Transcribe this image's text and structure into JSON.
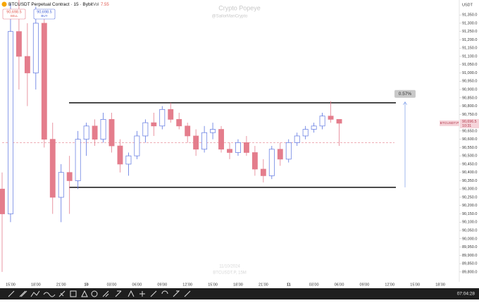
{
  "header": {
    "symbol": "BTCUSDT Perpetual Contract · 15 · Bybit",
    "vol_label": "Vol",
    "vol_value": "7.55",
    "sell_price": "90,698.5",
    "sell_label": "SELL",
    "buy_price": "90,698.5",
    "buy_label": "BUY"
  },
  "watermark": {
    "title": "Crypto Popeye",
    "handle": "@SailorManCrypto",
    "date": "11/10/2024",
    "symbol": "BTCUSDT.P, 15M"
  },
  "chart_data": {
    "type": "candlestick",
    "currency": "USDT",
    "x": [
      14,
      15,
      16,
      17,
      18,
      19,
      20,
      21,
      22,
      23,
      24,
      25,
      26,
      27,
      28,
      29,
      30,
      31,
      32,
      33,
      34,
      35,
      36,
      37,
      38,
      39,
      40,
      41,
      42,
      43,
      44,
      45,
      46,
      47,
      48,
      49,
      50,
      51,
      52,
      53,
      54
    ],
    "open": [
      90300,
      90150,
      91250,
      91100,
      91000,
      91300,
      90600,
      90250,
      90400,
      90350,
      90600,
      90680,
      90600,
      90720,
      90560,
      90450,
      90500,
      90620,
      90700,
      90680,
      90780,
      90720,
      90680,
      90620,
      90540,
      90640,
      90660,
      90540,
      90520,
      90580,
      90520,
      90420,
      90380,
      90540,
      90480,
      90580,
      90620,
      90660,
      90680,
      90740,
      90720
    ],
    "high": [
      90400,
      91420,
      91440,
      91300,
      91400,
      91350,
      90700,
      90450,
      90500,
      90650,
      90700,
      90720,
      90760,
      90760,
      90600,
      90520,
      90650,
      90720,
      90760,
      90800,
      90820,
      90760,
      90700,
      90660,
      90680,
      90700,
      90680,
      90580,
      90600,
      90620,
      90560,
      90480,
      90560,
      90580,
      90600,
      90640,
      90680,
      90700,
      90760,
      90830,
      90720
    ],
    "low": [
      89800,
      90100,
      90900,
      90800,
      90900,
      90550,
      90150,
      90100,
      90150,
      90300,
      90500,
      90560,
      90580,
      90520,
      90400,
      90380,
      90480,
      90580,
      90620,
      90660,
      90700,
      90660,
      90580,
      90500,
      90520,
      90600,
      90520,
      90480,
      90500,
      90500,
      90380,
      90340,
      90360,
      90440,
      90460,
      90560,
      90600,
      90640,
      90660,
      90700,
      90560
    ],
    "close": [
      90150,
      91250,
      91100,
      91000,
      91300,
      90600,
      90250,
      90400,
      90350,
      90600,
      90680,
      90600,
      90720,
      90560,
      90450,
      90500,
      90620,
      90700,
      90680,
      90780,
      90720,
      90680,
      90620,
      90540,
      90640,
      90660,
      90540,
      90520,
      90580,
      90520,
      90420,
      90380,
      90540,
      90480,
      90580,
      90620,
      90660,
      90680,
      90740,
      90720,
      90696.5
    ],
    "up_color": "#5b74e0",
    "down_color": "#e47d8c",
    "xlim": [
      13.75,
      68.25
    ],
    "xticks": [
      {
        "value": 15,
        "label": "15:00"
      },
      {
        "value": 18,
        "label": "18:00"
      },
      {
        "value": 21,
        "label": "21:00"
      },
      {
        "value": 24,
        "label": "10"
      },
      {
        "value": 27,
        "label": "03:00"
      },
      {
        "value": 30,
        "label": "06:00"
      },
      {
        "value": 33,
        "label": "09:00"
      },
      {
        "value": 36,
        "label": "12:00"
      },
      {
        "value": 39,
        "label": "15:00"
      },
      {
        "value": 42,
        "label": "18:00"
      },
      {
        "value": 45,
        "label": "21:00"
      },
      {
        "value": 48,
        "label": "11"
      },
      {
        "value": 51,
        "label": "03:00"
      },
      {
        "value": 54,
        "label": "06:00"
      },
      {
        "value": 57,
        "label": "09:00"
      },
      {
        "value": 60,
        "label": "12:00"
      },
      {
        "value": 63,
        "label": "15:00"
      },
      {
        "value": 66,
        "label": "18:00"
      }
    ],
    "ylim": [
      89740,
      91440
    ],
    "yticks": [
      {
        "value": 91350,
        "label": "91,350.0"
      },
      {
        "value": 91300,
        "label": "91,300.0"
      },
      {
        "value": 91250,
        "label": "91,250.0"
      },
      {
        "value": 91200,
        "label": "91,200.0"
      },
      {
        "value": 91150,
        "label": "91,150.0"
      },
      {
        "value": 91100,
        "label": "91,100.0"
      },
      {
        "value": 91050,
        "label": "91,050.0"
      },
      {
        "value": 91000,
        "label": "91,000.0"
      },
      {
        "value": 90950,
        "label": "90,950.0"
      },
      {
        "value": 90900,
        "label": "90,900.0"
      },
      {
        "value": 90850,
        "label": "90,850.0"
      },
      {
        "value": 90800,
        "label": "90,800.0"
      },
      {
        "value": 90750,
        "label": "90,750.0"
      },
      {
        "value": 90650,
        "label": "90,650.0"
      },
      {
        "value": 90600,
        "label": "90,600.0"
      },
      {
        "value": 90550,
        "label": "90,550.0"
      },
      {
        "value": 90500,
        "label": "90,500.0"
      },
      {
        "value": 90450,
        "label": "90,450.0"
      },
      {
        "value": 90400,
        "label": "90,400.0"
      },
      {
        "value": 90350,
        "label": "90,350.0"
      },
      {
        "value": 90300,
        "label": "90,300.0"
      },
      {
        "value": 90250,
        "label": "90,250.0"
      },
      {
        "value": 90200,
        "label": "90,200.0"
      },
      {
        "value": 90150,
        "label": "90,150.0"
      },
      {
        "value": 90100,
        "label": "90,100.0"
      },
      {
        "value": 90050,
        "label": "90,050.0"
      },
      {
        "value": 90000,
        "label": "90,000.0"
      },
      {
        "value": 89950,
        "label": "89,950.0"
      },
      {
        "value": 89900,
        "label": "89,900.0"
      },
      {
        "value": 89850,
        "label": "89,850.0"
      },
      {
        "value": 89800,
        "label": "89,800.0"
      }
    ],
    "range_high": 90820,
    "range_low": 90310,
    "reference_line": 90580,
    "measure": {
      "from": 90310,
      "to": 90825,
      "label": "0.57%"
    },
    "last_price": {
      "value": 90696.5,
      "label": "90,696.5",
      "symbol": "BTCUSDT.P",
      "countdown": "10:31"
    }
  },
  "footer": {
    "clock": "07:04:28"
  }
}
